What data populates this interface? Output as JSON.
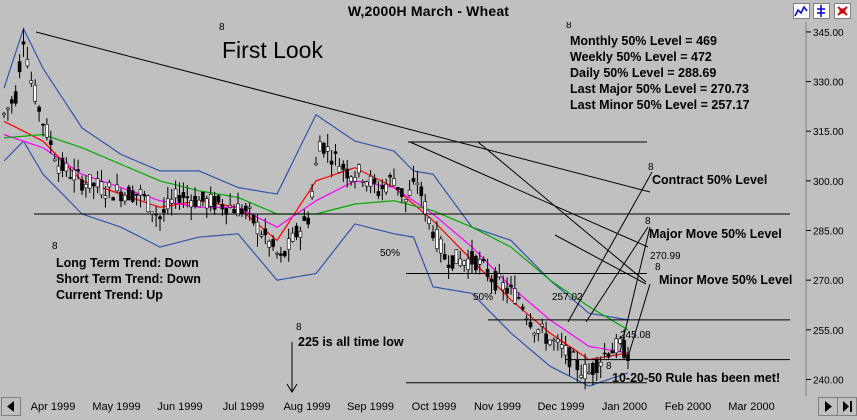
{
  "window": {
    "title": "W,2000H  March - Wheat",
    "buttons": [
      {
        "name": "chart-tool-icon",
        "color": "#0000cc"
      },
      {
        "name": "settings-tool-icon",
        "color": "#0000cc"
      },
      {
        "name": "close-tool-icon",
        "color": "#cc0000"
      }
    ]
  },
  "annotations": {
    "first_look": "First Look",
    "levels": [
      "Monthly 50% Level = 469",
      "Weekly 50% Level = 472",
      "Daily 50% Level = 288.69",
      "Last Major 50% Level = 270.73",
      "Last Minor 50% Level = 257.17"
    ],
    "trends": [
      "Long Term Trend: Down",
      "Short Term Trend: Down",
      "Current Trend: Up"
    ],
    "contract_level": "Contract 50% Level",
    "major_move": "Major Move 50% Level",
    "minor_move": "Minor Move 50% Level",
    "all_time_low": "225 is all time low",
    "rule_met": "10-20-50 Rule has been met!",
    "fifty_pct": "50%",
    "marker": "8",
    "price_270": "270.99",
    "price_257": "257.02",
    "price_245": "245.08"
  },
  "chart_data": {
    "type": "candlestick",
    "x_labels": [
      "Apr 1999",
      "May 1999",
      "Jun 1999",
      "Jul 1999",
      "Aug 1999",
      "Sep 1999",
      "Oct 1999",
      "Nov 1999",
      "Dec 1999",
      "Jan 2000",
      "Feb 2000",
      "Mar 2000"
    ],
    "y_ticks": [
      240.0,
      255.0,
      270.0,
      285.0,
      300.0,
      315.0,
      330.0,
      345.0
    ],
    "ylim": [
      235,
      348
    ],
    "close_path": [
      [
        0,
        320
      ],
      [
        6,
        326
      ],
      [
        10,
        344
      ],
      [
        14,
        330
      ],
      [
        20,
        318
      ],
      [
        28,
        305
      ],
      [
        40,
        300
      ],
      [
        55,
        297
      ],
      [
        70,
        296
      ],
      [
        80,
        289
      ],
      [
        90,
        296
      ],
      [
        100,
        294
      ],
      [
        112,
        293
      ],
      [
        124,
        291
      ],
      [
        134,
        283
      ],
      [
        142,
        276
      ],
      [
        150,
        284
      ],
      [
        156,
        289
      ],
      [
        162,
        312
      ],
      [
        168,
        308
      ],
      [
        176,
        303
      ],
      [
        184,
        302
      ],
      [
        192,
        297
      ],
      [
        200,
        301
      ],
      [
        206,
        294
      ],
      [
        212,
        300
      ],
      [
        218,
        288
      ],
      [
        226,
        277
      ],
      [
        234,
        276
      ],
      [
        242,
        276
      ],
      [
        250,
        271
      ],
      [
        256,
        268
      ],
      [
        264,
        265
      ],
      [
        272,
        256
      ],
      [
        280,
        252
      ],
      [
        288,
        248
      ],
      [
        296,
        243
      ],
      [
        300,
        242
      ],
      [
        304,
        245
      ],
      [
        310,
        249
      ],
      [
        316,
        250
      ],
      [
        320,
        248
      ]
    ],
    "moving_averages": [
      {
        "color": "#ff0000",
        "values": [
          [
            0,
            318
          ],
          [
            20,
            312
          ],
          [
            40,
            300
          ],
          [
            60,
            296
          ],
          [
            80,
            292
          ],
          [
            100,
            294
          ],
          [
            120,
            292
          ],
          [
            140,
            282
          ],
          [
            160,
            300
          ],
          [
            180,
            304
          ],
          [
            200,
            298
          ],
          [
            220,
            288
          ],
          [
            240,
            276
          ],
          [
            260,
            264
          ],
          [
            280,
            254
          ],
          [
            300,
            246
          ],
          [
            320,
            248
          ]
        ]
      },
      {
        "color": "#ff00ff",
        "values": [
          [
            0,
            314
          ],
          [
            20,
            310
          ],
          [
            40,
            302
          ],
          [
            60,
            298
          ],
          [
            80,
            294
          ],
          [
            100,
            292
          ],
          [
            120,
            292
          ],
          [
            140,
            286
          ],
          [
            160,
            294
          ],
          [
            180,
            300
          ],
          [
            200,
            298
          ],
          [
            220,
            290
          ],
          [
            240,
            280
          ],
          [
            260,
            268
          ],
          [
            280,
            258
          ],
          [
            300,
            250
          ],
          [
            320,
            248
          ]
        ]
      },
      {
        "color": "#00aa00",
        "values": [
          [
            0,
            313
          ],
          [
            20,
            314
          ],
          [
            40,
            310
          ],
          [
            60,
            305
          ],
          [
            80,
            300
          ],
          [
            100,
            297
          ],
          [
            120,
            295
          ],
          [
            140,
            290
          ],
          [
            160,
            290
          ],
          [
            180,
            293
          ],
          [
            200,
            294
          ],
          [
            220,
            291
          ],
          [
            240,
            286
          ],
          [
            260,
            280
          ],
          [
            280,
            270
          ],
          [
            300,
            262
          ],
          [
            320,
            255
          ]
        ]
      }
    ],
    "bollinger": {
      "color": "#3355aa",
      "upper": [
        [
          0,
          328
        ],
        [
          10,
          346
        ],
        [
          20,
          334
        ],
        [
          40,
          316
        ],
        [
          60,
          308
        ],
        [
          80,
          303
        ],
        [
          100,
          303
        ],
        [
          120,
          298
        ],
        [
          140,
          296
        ],
        [
          160,
          320
        ],
        [
          180,
          312
        ],
        [
          200,
          309
        ],
        [
          210,
          303
        ],
        [
          220,
          302
        ],
        [
          240,
          286
        ],
        [
          260,
          282
        ],
        [
          280,
          270
        ],
        [
          300,
          260
        ],
        [
          320,
          258
        ]
      ],
      "lower": [
        [
          0,
          306
        ],
        [
          10,
          312
        ],
        [
          20,
          302
        ],
        [
          40,
          290
        ],
        [
          60,
          286
        ],
        [
          80,
          280
        ],
        [
          100,
          283
        ],
        [
          120,
          284
        ],
        [
          140,
          270
        ],
        [
          160,
          272
        ],
        [
          180,
          287
        ],
        [
          200,
          284
        ],
        [
          210,
          283
        ],
        [
          220,
          268
        ],
        [
          240,
          266
        ],
        [
          260,
          254
        ],
        [
          280,
          244
        ],
        [
          300,
          238
        ],
        [
          320,
          242
        ]
      ]
    },
    "price_levels": [
      290.0,
      272.0,
      258.0,
      246.0,
      239.0
    ],
    "x_domain": [
      0,
      320
    ]
  }
}
